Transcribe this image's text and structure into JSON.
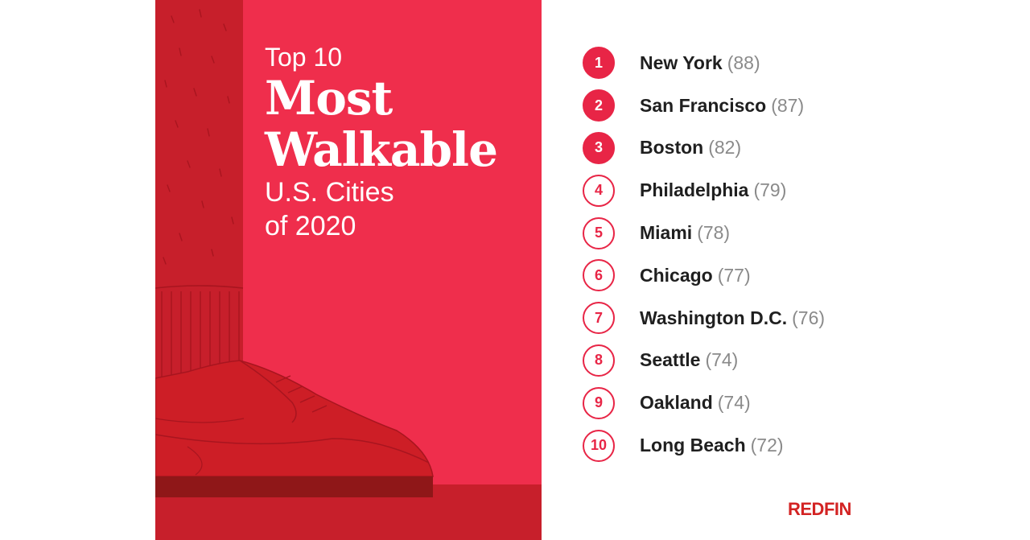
{
  "title": {
    "line1": "Top 10",
    "line2": "Most",
    "line3": "Walkable",
    "line4": "U.S. Cities",
    "line5": "of 2020"
  },
  "rankings": [
    {
      "rank": "1",
      "city": "New York",
      "score": "(88)",
      "style": "filled"
    },
    {
      "rank": "2",
      "city": "San Francisco",
      "score": "(87)",
      "style": "filled"
    },
    {
      "rank": "3",
      "city": "Boston",
      "score": "(82)",
      "style": "filled"
    },
    {
      "rank": "4",
      "city": "Philadelphia",
      "score": "(79)",
      "style": "outline"
    },
    {
      "rank": "5",
      "city": "Miami",
      "score": "(78)",
      "style": "outline"
    },
    {
      "rank": "6",
      "city": "Chicago",
      "score": "(77)",
      "style": "outline"
    },
    {
      "rank": "7",
      "city": "Washington D.C.",
      "score": "(76)",
      "style": "outline"
    },
    {
      "rank": "8",
      "city": "Seattle",
      "score": "(74)",
      "style": "outline"
    },
    {
      "rank": "9",
      "city": "Oakland",
      "score": "(74)",
      "style": "outline"
    },
    {
      "rank": "10",
      "city": "Long Beach",
      "score": "(72)",
      "style": "outline"
    }
  ],
  "brand": {
    "logo_text": "REDFIN"
  },
  "colors": {
    "poster_bg": "#ef2e4c",
    "leg": "#c71f2b",
    "shoe": "#cd1e26",
    "sole": "#8f1718",
    "badge": "#e82546",
    "logo": "#d32323"
  },
  "illustration": {
    "icon": "sneaker-icon"
  }
}
